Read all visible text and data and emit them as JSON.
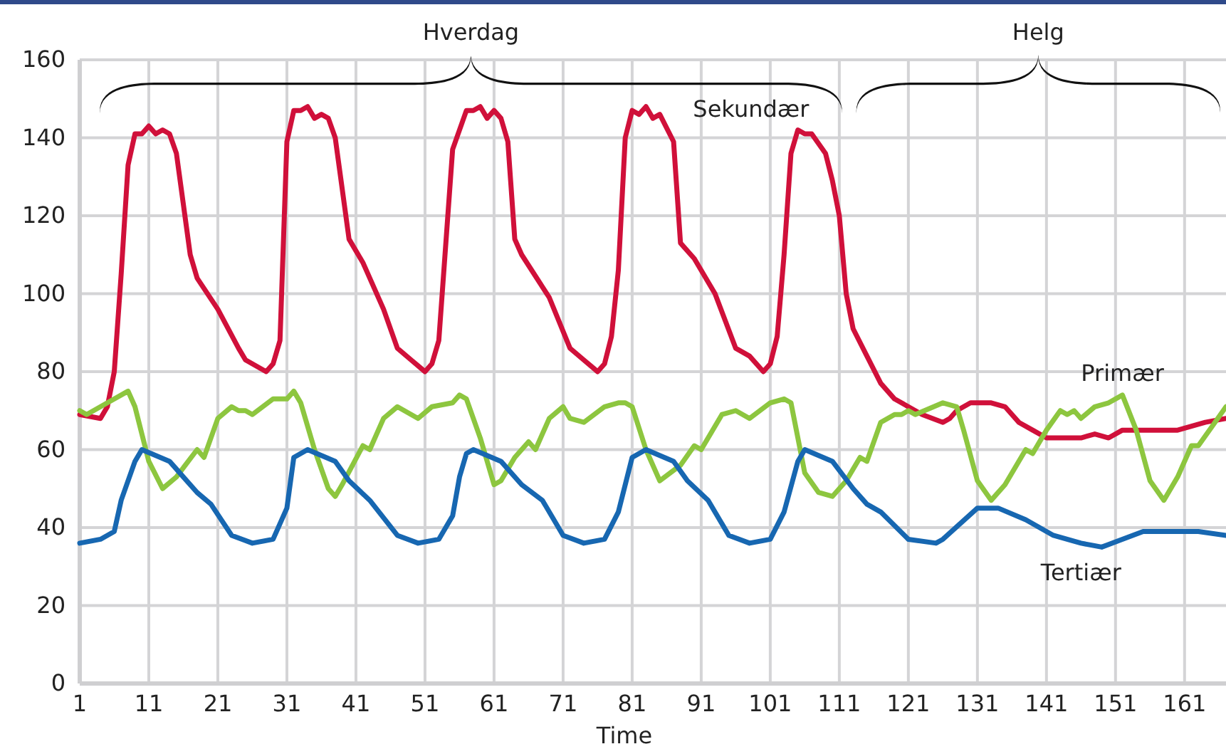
{
  "chart_data": {
    "type": "line",
    "xlabel": "Time",
    "xlim": [
      1,
      167
    ],
    "xticks": [
      1,
      11,
      21,
      31,
      41,
      51,
      61,
      71,
      81,
      91,
      101,
      111,
      121,
      131,
      141,
      151,
      161
    ],
    "ylim": [
      0,
      160
    ],
    "yticks": [
      0,
      20,
      40,
      60,
      80,
      100,
      120,
      140,
      160
    ],
    "grid": true,
    "line_style": "solid",
    "marker": "none",
    "annotations": [
      "Hverdag",
      "Helg"
    ],
    "series": [
      {
        "name": "Sekundær",
        "color": "#d0103a",
        "x": [
          1,
          4,
          5,
          6,
          7,
          8,
          9,
          10,
          11,
          12,
          13,
          14,
          15,
          17,
          18,
          21,
          24,
          25,
          28,
          29,
          30,
          31,
          32,
          33,
          34,
          35,
          36,
          37,
          38,
          40,
          42,
          45,
          47,
          49,
          51,
          52,
          53,
          55,
          57,
          58,
          59,
          60,
          61,
          62,
          63,
          64,
          65,
          69,
          72,
          74,
          76,
          77,
          78,
          79,
          80,
          81,
          82,
          83,
          84,
          85,
          87,
          88,
          90,
          93,
          96,
          98,
          100,
          101,
          102,
          103,
          104,
          105,
          106,
          107,
          109,
          110,
          111,
          112,
          113,
          115,
          117,
          119,
          121,
          123,
          126,
          127,
          128,
          130,
          133,
          135,
          137,
          139,
          141,
          144,
          146,
          148,
          150,
          152,
          155,
          158,
          160,
          162,
          164,
          167
        ],
        "values": [
          69,
          68,
          71,
          80,
          105,
          133,
          141,
          141,
          143,
          141,
          142,
          141,
          136,
          110,
          104,
          96,
          86,
          83,
          80,
          82,
          88,
          139,
          147,
          147,
          148,
          145,
          146,
          145,
          140,
          114,
          108,
          96,
          86,
          83,
          80,
          82,
          88,
          137,
          147,
          147,
          148,
          145,
          147,
          145,
          139,
          114,
          110,
          99,
          86,
          83,
          80,
          82,
          89,
          106,
          140,
          147,
          146,
          148,
          145,
          146,
          139,
          113,
          109,
          100,
          86,
          84,
          80,
          82,
          89,
          110,
          136,
          142,
          141,
          141,
          136,
          129,
          120,
          100,
          91,
          84,
          77,
          73,
          71,
          69,
          67,
          68,
          70,
          72,
          72,
          71,
          67,
          65,
          63,
          63,
          63,
          64,
          63,
          65,
          65,
          65,
          65,
          66,
          67,
          68
        ]
      },
      {
        "name": "Primær",
        "color": "#8dc63f",
        "x": [
          1,
          2,
          5,
          8,
          9,
          11,
          13,
          15,
          18,
          19,
          21,
          23,
          24,
          25,
          26,
          29,
          31,
          32,
          33,
          35,
          37,
          38,
          39,
          42,
          43,
          45,
          47,
          48,
          50,
          52,
          55,
          56,
          57,
          59,
          61,
          62,
          64,
          66,
          67,
          69,
          71,
          72,
          74,
          77,
          79,
          80,
          81,
          83,
          85,
          88,
          90,
          91,
          94,
          96,
          97,
          98,
          101,
          103,
          104,
          106,
          108,
          110,
          112,
          114,
          115,
          117,
          119,
          120,
          121,
          122,
          126,
          128,
          129,
          131,
          133,
          135,
          138,
          139,
          141,
          143,
          144,
          145,
          146,
          148,
          150,
          152,
          154,
          156,
          158,
          160,
          162,
          163,
          165,
          167
        ],
        "values": [
          70,
          69,
          72,
          75,
          71,
          57,
          50,
          53,
          60,
          58,
          68,
          71,
          70,
          70,
          69,
          73,
          73,
          75,
          72,
          60,
          50,
          48,
          51,
          61,
          60,
          68,
          71,
          70,
          68,
          71,
          72,
          74,
          73,
          63,
          51,
          52,
          58,
          62,
          60,
          68,
          71,
          68,
          67,
          71,
          72,
          72,
          71,
          60,
          52,
          56,
          61,
          60,
          69,
          70,
          69,
          68,
          72,
          73,
          72,
          54,
          49,
          48,
          52,
          58,
          57,
          67,
          69,
          69,
          70,
          69,
          72,
          71,
          65,
          52,
          47,
          51,
          60,
          59,
          65,
          70,
          69,
          70,
          68,
          71,
          72,
          74,
          65,
          52,
          47,
          53,
          61,
          61,
          66,
          71
        ]
      },
      {
        "name": "Tertiær",
        "color": "#1767b1",
        "x": [
          1,
          4,
          6,
          7,
          9,
          10,
          14,
          16,
          18,
          20,
          23,
          26,
          29,
          31,
          32,
          34,
          38,
          40,
          43,
          47,
          50,
          53,
          55,
          56,
          57,
          58,
          62,
          65,
          68,
          71,
          74,
          77,
          79,
          81,
          83,
          87,
          89,
          92,
          95,
          98,
          101,
          103,
          105,
          106,
          110,
          113,
          115,
          117,
          121,
          125,
          126,
          131,
          134,
          138,
          142,
          146,
          149,
          155,
          159,
          163,
          167
        ],
        "values": [
          36,
          37,
          39,
          47,
          57,
          60,
          57,
          53,
          49,
          46,
          38,
          36,
          37,
          45,
          58,
          60,
          57,
          52,
          47,
          38,
          36,
          37,
          43,
          53,
          59,
          60,
          57,
          51,
          47,
          38,
          36,
          37,
          44,
          58,
          60,
          57,
          52,
          47,
          38,
          36,
          37,
          44,
          57,
          60,
          57,
          50,
          46,
          44,
          37,
          36,
          37,
          45,
          45,
          42,
          38,
          36,
          35,
          39,
          39,
          39,
          38
        ]
      }
    ]
  }
}
